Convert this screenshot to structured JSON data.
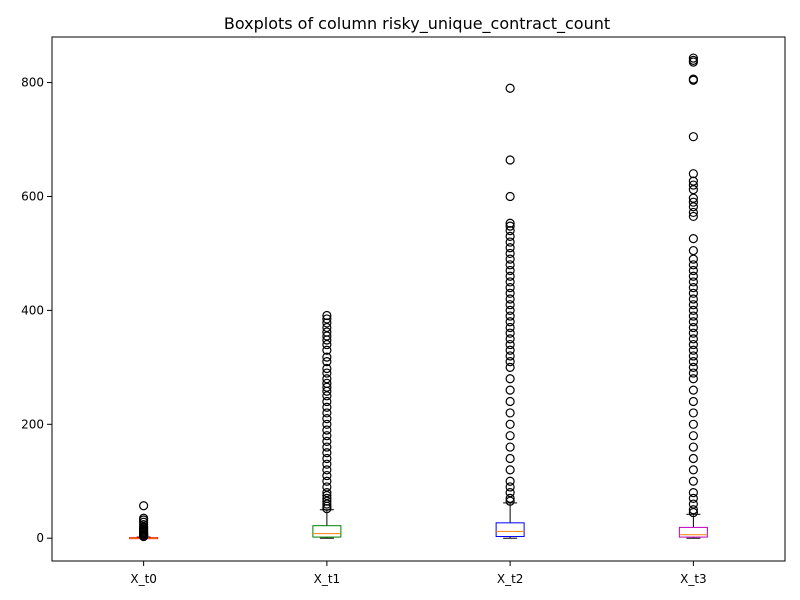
{
  "chart_data": {
    "type": "box",
    "title": "Boxplots of column risky_unique_contract_count",
    "xlabel": "",
    "ylabel": "",
    "ylim": [
      -40,
      880
    ],
    "yticks": [
      0,
      200,
      400,
      600,
      800
    ],
    "grid": false,
    "series": [
      {
        "name": "X_t0",
        "color": "#ff0000",
        "q1": 0,
        "median": 0,
        "q3": 1,
        "whisker_low": 0,
        "whisker_high": 2,
        "outliers": [
          3,
          4,
          5,
          6,
          7,
          8,
          10,
          12,
          14,
          16,
          18,
          20,
          24,
          28,
          32,
          35,
          57
        ]
      },
      {
        "name": "X_t1",
        "color": "#008000",
        "q1": 2,
        "median": 8,
        "q3": 22,
        "whisker_low": 0,
        "whisker_high": 50,
        "outliers": [
          52,
          56,
          60,
          65,
          70,
          75,
          80,
          90,
          100,
          110,
          120,
          130,
          140,
          150,
          160,
          170,
          180,
          190,
          200,
          210,
          220,
          230,
          240,
          250,
          258,
          265,
          272,
          280,
          290,
          298,
          310,
          318,
          330,
          340,
          348,
          355,
          362,
          370,
          378,
          385,
          391
        ]
      },
      {
        "name": "X_t2",
        "color": "#0000ff",
        "q1": 3,
        "median": 12,
        "q3": 27,
        "whisker_low": 0,
        "whisker_high": 62,
        "outliers": [
          65,
          70,
          80,
          90,
          100,
          120,
          140,
          160,
          180,
          200,
          220,
          240,
          260,
          280,
          300,
          310,
          320,
          330,
          340,
          350,
          360,
          370,
          380,
          390,
          400,
          410,
          420,
          430,
          440,
          450,
          460,
          470,
          480,
          490,
          500,
          510,
          520,
          530,
          540,
          548,
          553,
          600,
          664,
          790
        ]
      },
      {
        "name": "X_t3",
        "color": "#bf00bf",
        "q1": 2,
        "median": 6,
        "q3": 19,
        "whisker_low": 0,
        "whisker_high": 42,
        "outliers": [
          45,
          50,
          60,
          70,
          80,
          100,
          120,
          140,
          160,
          180,
          200,
          220,
          240,
          260,
          280,
          290,
          300,
          310,
          320,
          330,
          340,
          350,
          360,
          370,
          380,
          390,
          400,
          410,
          420,
          430,
          440,
          450,
          460,
          470,
          480,
          490,
          505,
          526,
          565,
          572,
          582,
          590,
          597,
          612,
          620,
          627,
          640,
          705,
          804,
          806,
          836,
          839,
          843
        ]
      }
    ]
  }
}
